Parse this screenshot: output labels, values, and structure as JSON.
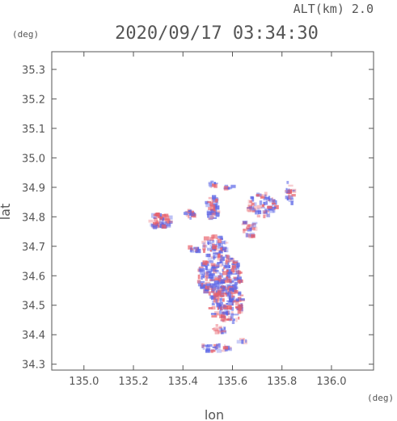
{
  "header": {
    "alt_label": "ALT(km) 2.0",
    "timestamp": "2020/09/17 03:34:30"
  },
  "chart_data": {
    "type": "heatmap",
    "title": "2020/09/17 03:34:30",
    "subtitle": "ALT(km) 2.0",
    "xlabel": "lon",
    "ylabel": "lat",
    "x_unit": "(deg)",
    "y_unit": "(deg)",
    "xlim": [
      134.87,
      136.17
    ],
    "ylim": [
      34.28,
      35.36
    ],
    "x_ticks": [
      135.0,
      135.2,
      135.4,
      135.6,
      135.8,
      136.0
    ],
    "x_tick_labels": [
      "135.0",
      "135.2",
      "135.4",
      "135.6",
      "135.8",
      "136.0"
    ],
    "y_ticks": [
      34.3,
      34.4,
      34.5,
      34.6,
      34.7,
      34.8,
      34.9,
      35.0,
      35.1,
      35.2,
      35.3
    ],
    "y_tick_labels": [
      "34.3",
      "34.4",
      "34.5",
      "34.6",
      "34.7",
      "34.8",
      "34.9",
      "35.0",
      "35.1",
      "35.2",
      "35.3"
    ],
    "grid": false,
    "colors": {
      "positive": "#e8606a",
      "negative": "#5a64e6",
      "axis": "#555555"
    },
    "clusters": [
      {
        "lon": 135.31,
        "lat": 34.785,
        "rlon": 0.05,
        "rlat": 0.025,
        "n": 55
      },
      {
        "lon": 135.43,
        "lat": 34.81,
        "rlon": 0.02,
        "rlat": 0.015,
        "n": 20
      },
      {
        "lon": 135.52,
        "lat": 34.83,
        "rlon": 0.03,
        "rlat": 0.04,
        "n": 40
      },
      {
        "lon": 135.52,
        "lat": 34.91,
        "rlon": 0.015,
        "rlat": 0.01,
        "n": 10
      },
      {
        "lon": 135.59,
        "lat": 34.9,
        "rlon": 0.02,
        "rlat": 0.008,
        "n": 8
      },
      {
        "lon": 135.72,
        "lat": 34.84,
        "rlon": 0.06,
        "rlat": 0.04,
        "n": 70
      },
      {
        "lon": 135.83,
        "lat": 34.88,
        "rlon": 0.02,
        "rlat": 0.04,
        "n": 20
      },
      {
        "lon": 135.67,
        "lat": 34.76,
        "rlon": 0.03,
        "rlat": 0.03,
        "n": 25
      },
      {
        "lon": 135.53,
        "lat": 34.7,
        "rlon": 0.05,
        "rlat": 0.04,
        "n": 60
      },
      {
        "lon": 135.44,
        "lat": 34.69,
        "rlon": 0.03,
        "rlat": 0.01,
        "n": 12
      },
      {
        "lon": 135.55,
        "lat": 34.6,
        "rlon": 0.09,
        "rlat": 0.07,
        "n": 220
      },
      {
        "lon": 135.58,
        "lat": 34.5,
        "rlon": 0.07,
        "rlat": 0.06,
        "n": 140
      },
      {
        "lon": 135.55,
        "lat": 34.42,
        "rlon": 0.04,
        "rlat": 0.015,
        "n": 15
      },
      {
        "lon": 135.53,
        "lat": 34.355,
        "rlon": 0.06,
        "rlat": 0.015,
        "n": 30
      },
      {
        "lon": 135.64,
        "lat": 34.38,
        "rlon": 0.02,
        "rlat": 0.008,
        "n": 6
      }
    ]
  }
}
